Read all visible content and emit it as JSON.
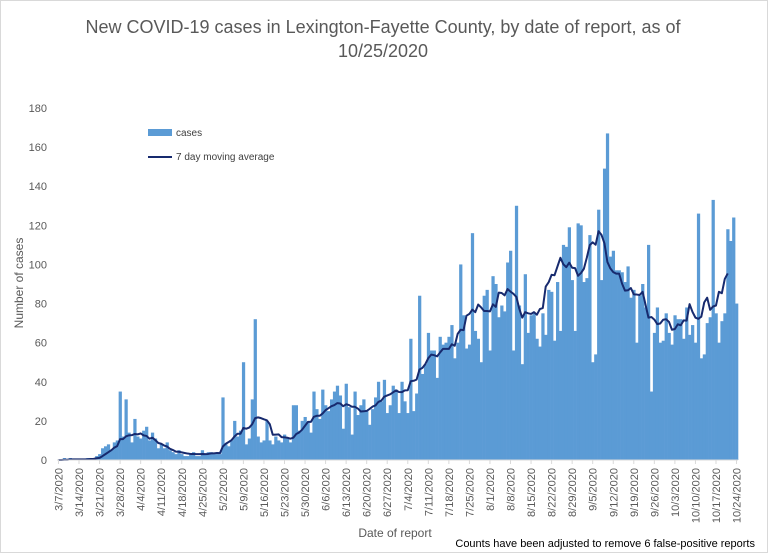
{
  "chart_data": {
    "type": "bar",
    "title_line1": "New COVID-19 cases in Lexington-Fayette County, by date of report, as of",
    "title_line2": "10/25/2020",
    "xlabel": "Date of report",
    "ylabel": "Number of cases",
    "note": "Counts have been adjusted to remove 6 false-positive reports",
    "ylim": [
      0,
      180
    ],
    "yticks": [
      0,
      20,
      40,
      60,
      80,
      100,
      120,
      140,
      160,
      180
    ],
    "x_start": "3/7/2020",
    "x_tick_labels": [
      "3/7/2020",
      "3/14/2020",
      "3/21/2020",
      "3/28/2020",
      "4/4/2020",
      "4/11/2020",
      "4/18/2020",
      "4/25/2020",
      "5/2/2020",
      "5/9/2020",
      "5/16/2020",
      "5/23/2020",
      "5/30/2020",
      "6/6/2020",
      "6/13/2020",
      "6/20/2020",
      "6/27/2020",
      "7/4/2020",
      "7/11/2020",
      "7/18/2020",
      "7/25/2020",
      "8/1/2020",
      "8/8/2020",
      "8/15/2020",
      "8/22/2020",
      "8/29/2020",
      "9/5/2020",
      "9/12/2020",
      "9/19/2020",
      "9/26/2020",
      "10/3/2020",
      "10/10/2020",
      "10/17/2020",
      "10/24/2020"
    ],
    "grid": false,
    "legend": "top-left",
    "series": [
      {
        "name": "cases",
        "kind": "bar",
        "color": "#5b9bd5",
        "values": [
          0,
          0,
          1,
          0,
          1,
          0,
          0,
          0,
          0,
          0,
          1,
          1,
          1,
          2,
          3,
          6,
          7,
          8,
          5,
          9,
          10,
          35,
          12,
          31,
          14,
          9,
          21,
          12,
          11,
          15,
          17,
          10,
          14,
          11,
          6,
          8,
          6,
          9,
          5,
          4,
          3,
          5,
          3,
          2,
          2,
          3,
          4,
          2,
          2,
          5,
          3,
          4,
          4,
          3,
          3,
          3,
          32,
          8,
          7,
          10,
          20,
          12,
          15,
          50,
          8,
          11,
          31,
          72,
          12,
          9,
          10,
          20,
          10,
          8,
          12,
          10,
          9,
          13,
          11,
          9,
          28,
          28,
          15,
          20,
          22,
          19,
          14,
          35,
          26,
          21,
          36,
          28,
          25,
          31,
          35,
          38,
          33,
          16,
          39,
          27,
          13,
          35,
          23,
          28,
          31,
          25,
          18,
          26,
          32,
          40,
          30,
          41,
          24,
          28,
          38,
          36,
          24,
          40,
          30,
          24,
          62,
          25,
          34,
          84,
          44,
          49,
          65,
          56,
          56,
          42,
          63,
          59,
          60,
          63,
          69,
          52,
          60,
          100,
          74,
          57,
          59,
          116,
          66,
          62,
          50,
          84,
          87,
          56,
          94,
          90,
          73,
          79,
          76,
          101,
          107,
          56,
          130,
          79,
          49,
          95,
          65,
          74,
          75,
          62,
          58,
          75,
          64,
          87,
          86,
          61,
          91,
          66,
          110,
          109,
          119,
          92,
          66,
          121,
          120,
          91,
          93,
          115,
          50,
          54,
          128,
          92,
          149,
          167,
          104,
          107,
          97,
          97,
          96,
          91,
          99,
          83,
          87,
          60,
          84,
          90,
          78,
          110,
          35,
          65,
          78,
          60,
          61,
          75,
          65,
          59,
          74,
          72,
          72,
          62,
          78,
          64,
          69,
          60,
          126,
          52,
          54,
          70,
          73,
          133,
          75,
          60,
          71,
          75,
          118,
          112,
          124,
          80
        ]
      },
      {
        "name": "7 day moving average",
        "kind": "line",
        "color": "#172a6e",
        "values": [
          0,
          0,
          0.1,
          0.1,
          0.3,
          0.3,
          0.3,
          0.3,
          0.3,
          0.3,
          0.4,
          0.5,
          0.6,
          0.9,
          1.1,
          2,
          3,
          4,
          5,
          6.3,
          7.1,
          10.7,
          10.7,
          12.1,
          12.6,
          12.7,
          13.3,
          13.1,
          13.6,
          12.6,
          12.3,
          10.9,
          11.4,
          10.2,
          8.7,
          8.3,
          7.4,
          6.9,
          5.7,
          5.1,
          4.3,
          4.2,
          3.9,
          3.6,
          3.3,
          3.1,
          3.1,
          3.0,
          3.0,
          3.1,
          3.0,
          3.1,
          3.4,
          3.4,
          3.6,
          3.5,
          6.9,
          8.3,
          9.2,
          10.2,
          12.1,
          13.4,
          13.4,
          16.4,
          16.0,
          16.6,
          18.3,
          21.4,
          21.8,
          21.4,
          20.8,
          20.3,
          18.3,
          12.9,
          13.0,
          13.1,
          11.7,
          11.6,
          11.4,
          10.9,
          11.4,
          13.3,
          14.1,
          15.5,
          17.5,
          19.5,
          19.5,
          22.1,
          22.6,
          22.6,
          23.8,
          25.5,
          26.5,
          27.5,
          28.1,
          29.1,
          28.9,
          27.5,
          28.5,
          28.1,
          27.2,
          27.2,
          26.3,
          24.8,
          24.9,
          25.1,
          26.1,
          27.3,
          27.9,
          29.7,
          30.4,
          32.4,
          33.0,
          33.6,
          34.6,
          35.6,
          34.8,
          34.7,
          35.6,
          35.7,
          40.3,
          40.5,
          41.1,
          46.3,
          47.1,
          49.1,
          52.1,
          53.9,
          53.6,
          53.0,
          55.0,
          56.8,
          56.8,
          56.8,
          59.2,
          58.4,
          64.5,
          66.6,
          66.4,
          73.8,
          74.7,
          76.9,
          75.6,
          79.5,
          78.0,
          76.2,
          76.2,
          76.0,
          79.6,
          78.3,
          85.6,
          85.4,
          84.2,
          87.4,
          86.1,
          85.0,
          83.4,
          77.3,
          72.8,
          75.6,
          75.0,
          74.7,
          75.6,
          74.3,
          77.2,
          77.7,
          88.7,
          90.9,
          94.7,
          94.5,
          99.0,
          103.4,
          100.1,
          98.6,
          100.9,
          98.3,
          98.1,
          94.2,
          95.6,
          97.8,
          103.5,
          109.9,
          111.3,
          110.1,
          117.0,
          115.1,
          110.8,
          101.3,
          98.0,
          96.1,
          95.3,
          95.3,
          90.2,
          86.6,
          86.8,
          87.9,
          84.7,
          84.6,
          84.4,
          86.0,
          79.4,
          72.8,
          73.1,
          71.8,
          69.5,
          69.8,
          71.7,
          72.0,
          70.6,
          66.6,
          67.0,
          69.4,
          68.9,
          71.4,
          71.3,
          79.7,
          75.7,
          72.8,
          72.2,
          73.3,
          80.6,
          83.0,
          76.8,
          78.5,
          79.0,
          86.0,
          85.3,
          92.6,
          95.4
        ]
      }
    ]
  }
}
